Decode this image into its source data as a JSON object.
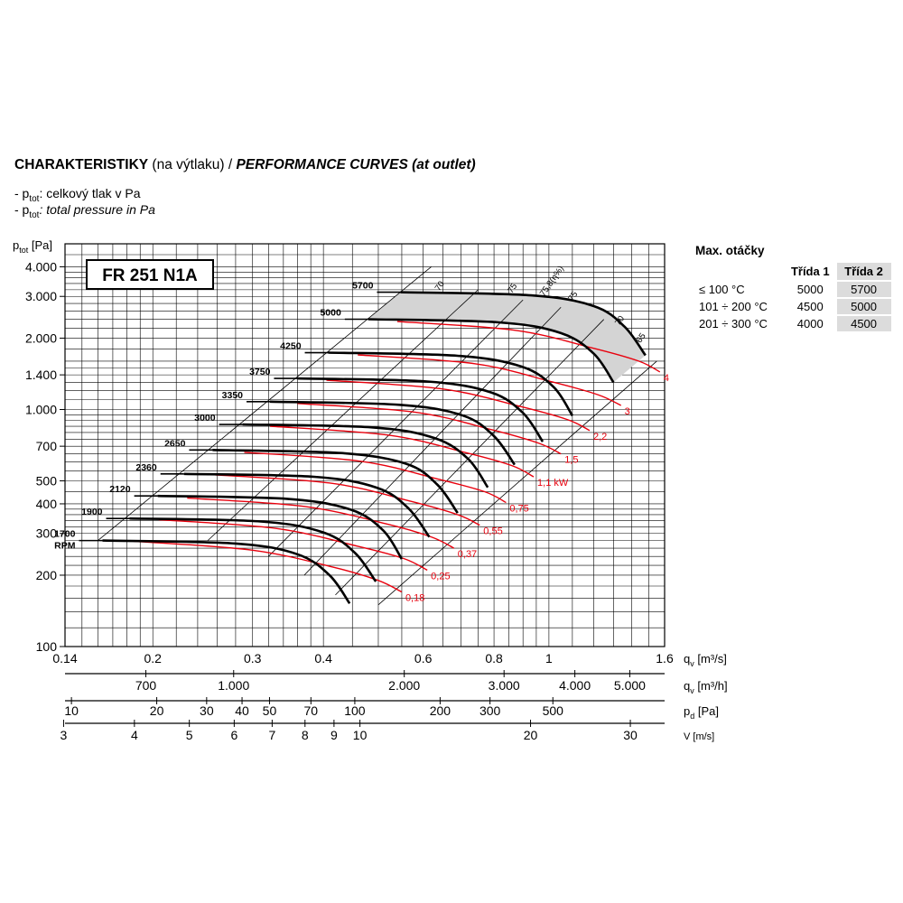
{
  "header": {
    "title_bold": "CHARAKTERISTIKY",
    "title_cz_rest": " (na výtlaku) / ",
    "title_en": "PERFORMANCE CURVES (at outlet)",
    "note_cz_prefix": "- p",
    "note_sub": "tot",
    "note_cz_text": ": celkový tlak v Pa",
    "note_en_text": ": total pressure in Pa"
  },
  "model": "FR 251 N1A",
  "speed_table": {
    "title": "Max. otáčky",
    "columns": [
      "Třída 1",
      "Třída 2"
    ],
    "rows": [
      {
        "label": "≤ 100 °C",
        "t1": "5000",
        "t2": "5700"
      },
      {
        "label": "101 ÷ 200 °C",
        "t1": "4500",
        "t2": "5000"
      },
      {
        "label": "201 ÷ 300 °C",
        "t1": "4000",
        "t2": "4500"
      }
    ]
  },
  "chart_data": {
    "type": "line",
    "title": "FR 251 N1A",
    "ylabel": "ptot [Pa]",
    "ylabel_main": "p",
    "ylabel_sub": "tot",
    "ylabel_unit": "[Pa]",
    "xlabel": "qv [m3/s]",
    "y_scale": "log",
    "x_scale": "log",
    "ylim": [
      100,
      5000
    ],
    "xlim": [
      0.14,
      1.6
    ],
    "y_ticks": [
      {
        "v": 100,
        "t": "100"
      },
      {
        "v": 200,
        "t": "200"
      },
      {
        "v": 300,
        "t": "300"
      },
      {
        "v": 400,
        "t": "400"
      },
      {
        "v": 500,
        "t": "500"
      },
      {
        "v": 700,
        "t": "700"
      },
      {
        "v": 1000,
        "t": "1.000"
      },
      {
        "v": 1400,
        "t": "1.400"
      },
      {
        "v": 2000,
        "t": "2.000"
      },
      {
        "v": 3000,
        "t": "3.000"
      },
      {
        "v": 4000,
        "t": "4.000"
      }
    ],
    "x_ticks": [
      {
        "v": 0.14,
        "t": "0.14"
      },
      {
        "v": 0.2,
        "t": "0.2"
      },
      {
        "v": 0.3,
        "t": "0.3"
      },
      {
        "v": 0.4,
        "t": "0.4"
      },
      {
        "v": 0.6,
        "t": "0.6"
      },
      {
        "v": 0.8,
        "t": "0.8"
      },
      {
        "v": 1,
        "t": "1"
      },
      {
        "v": 1.6,
        "t": "1.6"
      }
    ],
    "rpm_labels": [
      "1700",
      "1900",
      "2120",
      "2360",
      "2650",
      "3000",
      "3350",
      "3750",
      "4250",
      "5000",
      "5700"
    ],
    "rpm_unit": "RPM",
    "speed_curves": [
      {
        "rpm": 1700,
        "points": [
          [
            0.163,
            280
          ],
          [
            0.28,
            272
          ],
          [
            0.36,
            245
          ],
          [
            0.41,
            200
          ],
          [
            0.445,
            152
          ]
        ]
      },
      {
        "rpm": 1900,
        "points": [
          [
            0.182,
            347
          ],
          [
            0.31,
            337
          ],
          [
            0.4,
            303
          ],
          [
            0.455,
            248
          ],
          [
            0.495,
            188
          ]
        ]
      },
      {
        "rpm": 2120,
        "points": [
          [
            0.204,
            432
          ],
          [
            0.345,
            420
          ],
          [
            0.447,
            378
          ],
          [
            0.51,
            309
          ],
          [
            0.55,
            234
          ]
        ]
      },
      {
        "rpm": 2360,
        "points": [
          [
            0.227,
            535
          ],
          [
            0.385,
            520
          ],
          [
            0.497,
            468
          ],
          [
            0.565,
            383
          ],
          [
            0.615,
            290
          ]
        ]
      },
      {
        "rpm": 2650,
        "points": [
          [
            0.255,
            675
          ],
          [
            0.43,
            655
          ],
          [
            0.56,
            590
          ],
          [
            0.635,
            483
          ],
          [
            0.69,
            366
          ]
        ]
      },
      {
        "rpm": 3000,
        "points": [
          [
            0.288,
            865
          ],
          [
            0.49,
            840
          ],
          [
            0.63,
            756
          ],
          [
            0.72,
            619
          ],
          [
            0.78,
            469
          ]
        ]
      },
      {
        "rpm": 3350,
        "points": [
          [
            0.322,
            1079
          ],
          [
            0.545,
            1047
          ],
          [
            0.705,
            943
          ],
          [
            0.8,
            772
          ],
          [
            0.87,
            585
          ]
        ]
      },
      {
        "rpm": 3750,
        "points": [
          [
            0.36,
            1352
          ],
          [
            0.61,
            1312
          ],
          [
            0.79,
            1181
          ],
          [
            0.9,
            967
          ],
          [
            0.975,
            732
          ]
        ]
      },
      {
        "rpm": 4250,
        "points": [
          [
            0.408,
            1737
          ],
          [
            0.69,
            1685
          ],
          [
            0.895,
            1517
          ],
          [
            1.02,
            1242
          ],
          [
            1.1,
            941
          ]
        ]
      },
      {
        "rpm": 5000,
        "points": [
          [
            0.48,
            2404
          ],
          [
            0.815,
            2332
          ],
          [
            1.05,
            2100
          ],
          [
            1.2,
            1719
          ],
          [
            1.3,
            1302
          ]
        ]
      },
      {
        "rpm": 5700,
        "points": [
          [
            0.547,
            3125
          ],
          [
            0.93,
            3031
          ],
          [
            1.2,
            2729
          ],
          [
            1.36,
            2234
          ],
          [
            1.48,
            1692
          ]
        ]
      }
    ],
    "power_curves": [
      {
        "label": "0,18",
        "points": [
          [
            0.185,
            278
          ],
          [
            0.3,
            255
          ],
          [
            0.42,
            215
          ],
          [
            0.5,
            190
          ],
          [
            0.55,
            170
          ]
        ]
      },
      {
        "label": "0,25",
        "points": [
          [
            0.205,
            343
          ],
          [
            0.33,
            315
          ],
          [
            0.46,
            265
          ],
          [
            0.555,
            235
          ],
          [
            0.61,
            210
          ]
        ]
      },
      {
        "label": "0,37",
        "points": [
          [
            0.23,
            423
          ],
          [
            0.37,
            390
          ],
          [
            0.515,
            330
          ],
          [
            0.62,
            290
          ],
          [
            0.68,
            260
          ]
        ]
      },
      {
        "label": "0,55",
        "points": [
          [
            0.258,
            530
          ],
          [
            0.415,
            488
          ],
          [
            0.57,
            410
          ],
          [
            0.69,
            360
          ],
          [
            0.755,
            325
          ]
        ]
      },
      {
        "label": "0,75",
        "points": [
          [
            0.29,
            660
          ],
          [
            0.465,
            605
          ],
          [
            0.635,
            510
          ],
          [
            0.77,
            450
          ],
          [
            0.84,
            405
          ]
        ]
      },
      {
        "label": "1,1 kW",
        "points": [
          [
            0.322,
            850
          ],
          [
            0.52,
            780
          ],
          [
            0.71,
            660
          ],
          [
            0.86,
            580
          ],
          [
            0.94,
            520
          ]
        ]
      },
      {
        "label": "1,5",
        "points": [
          [
            0.36,
            1060
          ],
          [
            0.58,
            975
          ],
          [
            0.795,
            820
          ],
          [
            0.96,
            720
          ],
          [
            1.05,
            650
          ]
        ]
      },
      {
        "label": "2,2",
        "points": [
          [
            0.405,
            1330
          ],
          [
            0.65,
            1220
          ],
          [
            0.89,
            1030
          ],
          [
            1.08,
            905
          ],
          [
            1.18,
            815
          ]
        ]
      },
      {
        "label": "3",
        "points": [
          [
            0.46,
            1700
          ],
          [
            0.74,
            1560
          ],
          [
            1.01,
            1310
          ],
          [
            1.22,
            1155
          ],
          [
            1.34,
            1040
          ]
        ]
      },
      {
        "label": "4",
        "points": [
          [
            0.54,
            2350
          ],
          [
            0.87,
            2160
          ],
          [
            1.19,
            1820
          ],
          [
            1.44,
            1600
          ],
          [
            1.57,
            1440
          ]
        ]
      }
    ],
    "system_lines": [
      {
        "label": "",
        "points": [
          [
            0.16,
            280
          ],
          [
            0.62,
            4000
          ]
        ]
      },
      {
        "label": "",
        "points": [
          [
            0.25,
            280
          ],
          [
            0.75,
            3200
          ]
        ]
      },
      {
        "label": "",
        "points": [
          [
            0.32,
            240
          ],
          [
            0.9,
            2900
          ]
        ]
      },
      {
        "label": "",
        "points": [
          [
            0.37,
            200
          ],
          [
            1.05,
            2700
          ]
        ]
      },
      {
        "label": "",
        "points": [
          [
            0.42,
            165
          ],
          [
            1.25,
            2400
          ]
        ]
      },
      {
        "label": "",
        "points": [
          [
            0.5,
            150
          ],
          [
            1.55,
            1600
          ]
        ]
      }
    ],
    "efficiency_labels": [
      "70",
      "75",
      "75,8(η%)",
      "75",
      "70",
      "65"
    ],
    "max_speed_region_rpm": [
      5000,
      5700
    ],
    "secondary_axes": [
      {
        "label": "q",
        "sub": "v",
        "unit": " [m³/h]",
        "ticks": [
          {
            "v": 700,
            "t": "700"
          },
          {
            "v": 1000,
            "t": "1.000"
          },
          {
            "v": 2000,
            "t": "2.000"
          },
          {
            "v": 3000,
            "t": "3.000"
          },
          {
            "v": 4000,
            "t": "4.000"
          },
          {
            "v": 5000,
            "t": "5.000"
          }
        ]
      },
      {
        "label": "p",
        "sub": "d",
        "unit": " [Pa]",
        "ticks": [
          {
            "v": 10,
            "t": "10"
          },
          {
            "v": 20,
            "t": "20"
          },
          {
            "v": 30,
            "t": "30"
          },
          {
            "v": 40,
            "t": "40"
          },
          {
            "v": 50,
            "t": "50"
          },
          {
            "v": 70,
            "t": "70"
          },
          {
            "v": 100,
            "t": "100"
          },
          {
            "v": 200,
            "t": "200"
          },
          {
            "v": 300,
            "t": "300"
          },
          {
            "v": 500,
            "t": "500"
          }
        ]
      },
      {
        "label": "V",
        "sub": "",
        "unit": " [m/s]",
        "ticks": [
          {
            "v": 3,
            "t": "3"
          },
          {
            "v": 4,
            "t": "4"
          },
          {
            "v": 5,
            "t": "5"
          },
          {
            "v": 6,
            "t": "6"
          },
          {
            "v": 7,
            "t": "7"
          },
          {
            "v": 8,
            "t": "8"
          },
          {
            "v": 9,
            "t": "9"
          },
          {
            "v": 10,
            "t": "10"
          },
          {
            "v": 20,
            "t": "20"
          },
          {
            "v": 30,
            "t": "30"
          }
        ]
      }
    ],
    "primary_x_axis_label": "q",
    "primary_x_axis_sub": "v",
    "primary_x_axis_unit": " [m³/s]",
    "grid": true,
    "colors": {
      "speed": "#000000",
      "power": "#e8000d",
      "fill": "#d4d4d4"
    }
  }
}
